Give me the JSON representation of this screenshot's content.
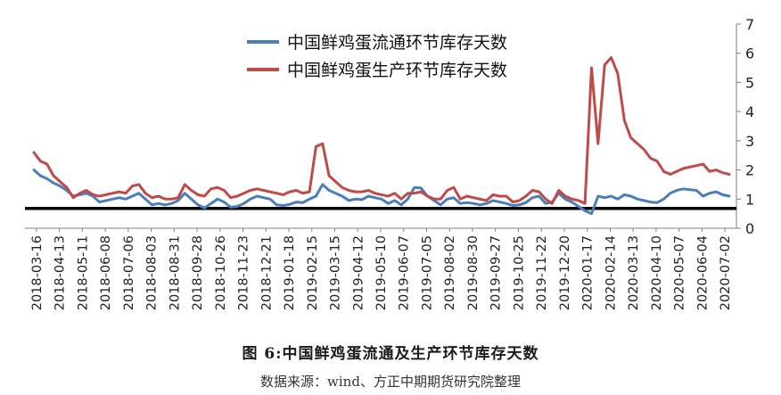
{
  "caption": "图 6:中国鲜鸡蛋流通及生产环节库存天数",
  "source": "数据来源：wind、方正中期期货研究院整理",
  "chart_data": {
    "type": "line",
    "title": "",
    "xlabel": "",
    "ylabel": "",
    "ylim": [
      0,
      7
    ],
    "yticks": [
      0,
      1,
      2,
      3,
      4,
      5,
      6,
      7
    ],
    "y_axis_side": "right",
    "grid": false,
    "legend_position": "top-left",
    "reference_line": 0.68,
    "x_tick_labels": [
      "2018-03-16",
      "2018-04-13",
      "2018-05-11",
      "2018-06-08",
      "2018-07-06",
      "2018-08-03",
      "2018-08-31",
      "2018-09-28",
      "2018-10-26",
      "2018-11-23",
      "2018-12-21",
      "2019-01-18",
      "2019-02-15",
      "2019-03-15",
      "2019-04-12",
      "2019-05-10",
      "2019-06-07",
      "2019-07-05",
      "2019-08-02",
      "2019-08-30",
      "2019-09-27",
      "2019-10-25",
      "2019-11-22",
      "2019-12-20",
      "2020-01-17",
      "2020-02-14",
      "2020-03-13",
      "2020-04-10",
      "2020-05-07",
      "2020-06-04",
      "2020-07-02"
    ],
    "series": [
      {
        "name": "中国鲜鸡蛋流通环节库存天数",
        "color": "#4a7ebb",
        "values": [
          2.0,
          1.8,
          1.7,
          1.55,
          1.45,
          1.3,
          1.1,
          1.15,
          1.2,
          1.1,
          0.9,
          0.95,
          1.0,
          1.05,
          1.0,
          1.1,
          1.2,
          1.0,
          0.8,
          0.85,
          0.8,
          0.85,
          0.95,
          1.2,
          1.0,
          0.8,
          0.7,
          0.85,
          1.0,
          0.9,
          0.72,
          0.75,
          0.85,
          1.0,
          1.1,
          1.05,
          1.0,
          0.8,
          0.78,
          0.82,
          0.9,
          0.88,
          1.0,
          1.1,
          1.5,
          1.3,
          1.2,
          1.1,
          0.95,
          1.0,
          0.98,
          1.1,
          1.05,
          1.0,
          0.85,
          0.95,
          0.8,
          1.0,
          1.4,
          1.38,
          1.1,
          0.95,
          0.8,
          1.0,
          1.05,
          0.85,
          0.88,
          0.85,
          0.8,
          0.85,
          0.95,
          0.9,
          0.85,
          0.78,
          0.8,
          0.88,
          1.05,
          1.1,
          0.85,
          0.9,
          1.2,
          1.0,
          0.9,
          0.75,
          0.6,
          0.5,
          1.1,
          1.05,
          1.1,
          1.0,
          1.15,
          1.1,
          1.0,
          0.95,
          0.9,
          0.88,
          1.0,
          1.2,
          1.3,
          1.35,
          1.32,
          1.3,
          1.1,
          1.2,
          1.25,
          1.15,
          1.1
        ]
      },
      {
        "name": "中国鲜鸡蛋生产环节库存天数",
        "color": "#be4b48",
        "values": [
          2.6,
          2.3,
          2.2,
          1.8,
          1.6,
          1.4,
          1.05,
          1.2,
          1.3,
          1.15,
          1.1,
          1.15,
          1.2,
          1.25,
          1.2,
          1.45,
          1.5,
          1.2,
          1.05,
          1.1,
          1.0,
          1.0,
          1.05,
          1.5,
          1.3,
          1.15,
          1.1,
          1.35,
          1.4,
          1.3,
          1.05,
          1.1,
          1.2,
          1.3,
          1.35,
          1.3,
          1.25,
          1.2,
          1.15,
          1.25,
          1.3,
          1.2,
          1.25,
          2.8,
          2.9,
          1.8,
          1.6,
          1.4,
          1.3,
          1.25,
          1.25,
          1.3,
          1.2,
          1.15,
          1.1,
          1.2,
          1.0,
          1.2,
          1.2,
          1.25,
          1.1,
          1.0,
          1.0,
          1.3,
          1.4,
          1.0,
          1.1,
          1.05,
          1.0,
          0.95,
          1.15,
          1.1,
          1.1,
          0.9,
          0.95,
          1.1,
          1.3,
          1.25,
          1.0,
          0.85,
          1.3,
          1.1,
          1.0,
          0.95,
          0.85,
          5.5,
          2.9,
          5.6,
          5.85,
          5.3,
          3.7,
          3.1,
          2.9,
          2.7,
          2.4,
          2.3,
          1.95,
          1.85,
          1.95,
          2.05,
          2.1,
          2.15,
          2.2,
          1.95,
          2.0,
          1.9,
          1.85
        ]
      }
    ]
  }
}
